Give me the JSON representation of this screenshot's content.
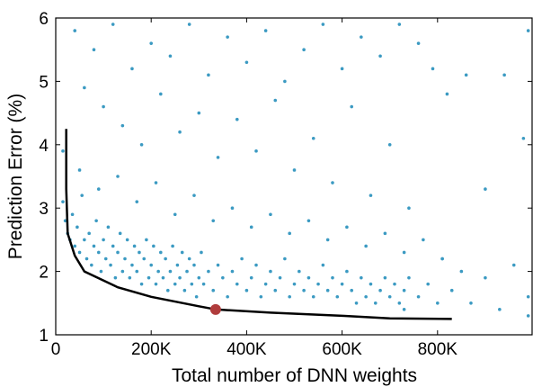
{
  "chart_data": {
    "type": "scatter",
    "title": "",
    "xlabel": "Total number of DNN weights",
    "ylabel": "Prediction Error (%)",
    "xlim": [
      0,
      1000000
    ],
    "ylim": [
      1,
      6
    ],
    "x_ticks": [
      {
        "value": 0,
        "label": "0"
      },
      {
        "value": 200000,
        "label": "200K"
      },
      {
        "value": 400000,
        "label": "400K"
      },
      {
        "value": 600000,
        "label": "600K"
      },
      {
        "value": 800000,
        "label": "800K"
      }
    ],
    "y_ticks": [
      {
        "value": 1,
        "label": "1"
      },
      {
        "value": 2,
        "label": "2"
      },
      {
        "value": 3,
        "label": "3"
      },
      {
        "value": 4,
        "label": "4"
      },
      {
        "value": 5,
        "label": "5"
      },
      {
        "value": 6,
        "label": "6"
      }
    ],
    "grid": false,
    "legend": "none",
    "series": [
      {
        "kind": "scatter",
        "color": "#3b9ac2",
        "points": [
          [
            15000,
            3.9
          ],
          [
            15000,
            3.1
          ],
          [
            20000,
            2.8
          ],
          [
            25000,
            2.6
          ],
          [
            30000,
            2.5
          ],
          [
            35000,
            2.9
          ],
          [
            40000,
            2.4
          ],
          [
            45000,
            2.7
          ],
          [
            50000,
            2.3
          ],
          [
            55000,
            3.2
          ],
          [
            60000,
            2.5
          ],
          [
            65000,
            2.2
          ],
          [
            70000,
            2.6
          ],
          [
            75000,
            2.1
          ],
          [
            80000,
            2.4
          ],
          [
            85000,
            2.8
          ],
          [
            90000,
            2.3
          ],
          [
            95000,
            2.0
          ],
          [
            100000,
            2.5
          ],
          [
            105000,
            2.2
          ],
          [
            110000,
            2.7
          ],
          [
            115000,
            2.1
          ],
          [
            120000,
            2.4
          ],
          [
            125000,
            1.9
          ],
          [
            130000,
            2.3
          ],
          [
            135000,
            2.6
          ],
          [
            140000,
            2.0
          ],
          [
            145000,
            2.2
          ],
          [
            150000,
            2.5
          ],
          [
            155000,
            1.9
          ],
          [
            160000,
            2.1
          ],
          [
            165000,
            2.4
          ],
          [
            170000,
            2.0
          ],
          [
            175000,
            2.3
          ],
          [
            180000,
            1.8
          ],
          [
            185000,
            2.2
          ],
          [
            190000,
            2.5
          ],
          [
            195000,
            1.9
          ],
          [
            200000,
            2.1
          ],
          [
            205000,
            2.4
          ],
          [
            210000,
            1.8
          ],
          [
            215000,
            2.0
          ],
          [
            220000,
            2.3
          ],
          [
            225000,
            1.9
          ],
          [
            230000,
            2.2
          ],
          [
            235000,
            1.7
          ],
          [
            240000,
            2.0
          ],
          [
            245000,
            2.4
          ],
          [
            250000,
            1.8
          ],
          [
            255000,
            2.1
          ],
          [
            260000,
            1.9
          ],
          [
            265000,
            2.3
          ],
          [
            270000,
            1.7
          ],
          [
            275000,
            2.0
          ],
          [
            280000,
            2.2
          ],
          [
            285000,
            1.8
          ],
          [
            290000,
            2.1
          ],
          [
            295000,
            1.6
          ],
          [
            300000,
            1.9
          ],
          [
            305000,
            2.3
          ],
          [
            310000,
            1.8
          ],
          [
            320000,
            2.0
          ],
          [
            330000,
            1.7
          ],
          [
            340000,
            2.1
          ],
          [
            350000,
            1.9
          ],
          [
            360000,
            1.6
          ],
          [
            370000,
            2.0
          ],
          [
            380000,
            1.8
          ],
          [
            390000,
            2.2
          ],
          [
            400000,
            1.7
          ],
          [
            410000,
            1.9
          ],
          [
            420000,
            2.1
          ],
          [
            430000,
            1.6
          ],
          [
            440000,
            1.8
          ],
          [
            450000,
            2.0
          ],
          [
            460000,
            1.7
          ],
          [
            470000,
            1.9
          ],
          [
            480000,
            2.2
          ],
          [
            490000,
            1.6
          ],
          [
            500000,
            1.8
          ],
          [
            510000,
            2.0
          ],
          [
            520000,
            1.7
          ],
          [
            530000,
            1.9
          ],
          [
            540000,
            1.6
          ],
          [
            550000,
            1.8
          ],
          [
            560000,
            2.1
          ],
          [
            570000,
            1.7
          ],
          [
            580000,
            1.9
          ],
          [
            590000,
            1.6
          ],
          [
            600000,
            1.8
          ],
          [
            610000,
            2.0
          ],
          [
            620000,
            1.7
          ],
          [
            630000,
            1.5
          ],
          [
            640000,
            1.9
          ],
          [
            650000,
            1.6
          ],
          [
            660000,
            1.8
          ],
          [
            670000,
            1.5
          ],
          [
            680000,
            1.7
          ],
          [
            690000,
            1.9
          ],
          [
            700000,
            1.6
          ],
          [
            710000,
            1.8
          ],
          [
            720000,
            1.5
          ],
          [
            730000,
            1.7
          ],
          [
            730000,
            1.4
          ],
          [
            740000,
            1.9
          ],
          [
            760000,
            1.6
          ],
          [
            780000,
            1.8
          ],
          [
            800000,
            1.5
          ],
          [
            810000,
            2.2
          ],
          [
            830000,
            1.7
          ],
          [
            850000,
            2.0
          ],
          [
            870000,
            1.5
          ],
          [
            900000,
            1.9
          ],
          [
            930000,
            1.4
          ],
          [
            960000,
            2.1
          ],
          [
            990000,
            1.6
          ],
          [
            990000,
            1.3
          ],
          [
            40000,
            5.8
          ],
          [
            60000,
            4.9
          ],
          [
            80000,
            5.5
          ],
          [
            100000,
            4.6
          ],
          [
            120000,
            5.9
          ],
          [
            140000,
            4.3
          ],
          [
            160000,
            5.2
          ],
          [
            180000,
            4.0
          ],
          [
            200000,
            5.6
          ],
          [
            220000,
            4.8
          ],
          [
            240000,
            5.4
          ],
          [
            260000,
            4.2
          ],
          [
            280000,
            5.9
          ],
          [
            300000,
            4.5
          ],
          [
            320000,
            5.1
          ],
          [
            340000,
            3.8
          ],
          [
            360000,
            5.7
          ],
          [
            380000,
            4.4
          ],
          [
            400000,
            5.3
          ],
          [
            420000,
            3.9
          ],
          [
            440000,
            5.8
          ],
          [
            460000,
            4.7
          ],
          [
            480000,
            5.0
          ],
          [
            500000,
            3.6
          ],
          [
            520000,
            5.5
          ],
          [
            540000,
            4.1
          ],
          [
            560000,
            5.9
          ],
          [
            580000,
            3.4
          ],
          [
            600000,
            5.2
          ],
          [
            620000,
            4.6
          ],
          [
            640000,
            5.7
          ],
          [
            660000,
            3.2
          ],
          [
            680000,
            5.4
          ],
          [
            700000,
            4.0
          ],
          [
            720000,
            5.9
          ],
          [
            740000,
            3.0
          ],
          [
            760000,
            5.6
          ],
          [
            790000,
            5.2
          ],
          [
            820000,
            4.8
          ],
          [
            860000,
            5.1
          ],
          [
            900000,
            3.3
          ],
          [
            940000,
            5.1
          ],
          [
            980000,
            4.1
          ],
          [
            990000,
            5.8
          ],
          [
            50000,
            3.6
          ],
          [
            90000,
            3.3
          ],
          [
            130000,
            3.5
          ],
          [
            170000,
            3.1
          ],
          [
            210000,
            3.4
          ],
          [
            250000,
            2.9
          ],
          [
            290000,
            3.2
          ],
          [
            330000,
            2.8
          ],
          [
            370000,
            3.0
          ],
          [
            410000,
            2.7
          ],
          [
            450000,
            2.9
          ],
          [
            490000,
            2.6
          ],
          [
            530000,
            2.8
          ],
          [
            570000,
            2.5
          ],
          [
            610000,
            2.7
          ],
          [
            650000,
            2.4
          ],
          [
            690000,
            2.6
          ],
          [
            730000,
            2.3
          ],
          [
            770000,
            2.5
          ],
          [
            810000,
            2.2
          ]
        ]
      },
      {
        "kind": "line",
        "name": "",
        "color": "#000000",
        "points": [
          [
            22000,
            4.25
          ],
          [
            22000,
            3.3
          ],
          [
            25000,
            2.6
          ],
          [
            40000,
            2.25
          ],
          [
            60000,
            2.0
          ],
          [
            130000,
            1.75
          ],
          [
            200000,
            1.6
          ],
          [
            300000,
            1.45
          ],
          [
            335000,
            1.4
          ],
          [
            450000,
            1.35
          ],
          [
            600000,
            1.3
          ],
          [
            700000,
            1.26
          ],
          [
            830000,
            1.25
          ]
        ]
      },
      {
        "kind": "highlight",
        "color": "#b03c3c",
        "points": [
          [
            335000,
            1.4
          ]
        ]
      }
    ]
  }
}
